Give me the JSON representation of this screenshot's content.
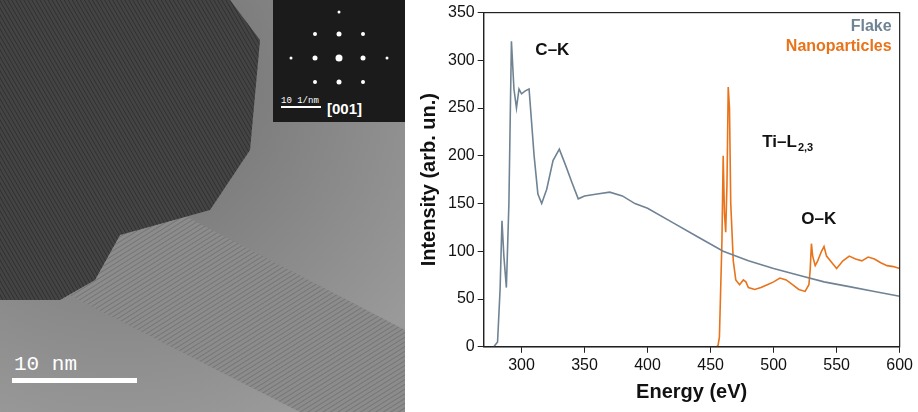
{
  "chart_data": {
    "type": "line",
    "x_label": "Energy (eV)",
    "y_label": "Intensity (arb. un.)",
    "xlim": [
      270,
      600
    ],
    "xticks": [
      300,
      350,
      400,
      450,
      500,
      550,
      600
    ],
    "ylim": [
      0,
      350
    ],
    "yticks": [
      0,
      50,
      100,
      150,
      200,
      250,
      300,
      350
    ],
    "grid": false,
    "legend": "top-right",
    "series": [
      {
        "name": "Flake",
        "color": "#6f8394",
        "x": [
          278,
          281,
          283,
          284.5,
          286,
          288,
          290,
          292,
          294,
          296,
          298,
          300,
          303,
          306,
          308,
          310,
          313,
          316,
          320,
          325,
          330,
          335,
          340,
          345,
          350,
          360,
          370,
          380,
          390,
          400,
          420,
          440,
          460,
          480,
          500,
          520,
          540,
          560,
          580,
          600
        ],
        "values": [
          0,
          5,
          60,
          132,
          95,
          62,
          150,
          320,
          270,
          250,
          270,
          265,
          268,
          270,
          235,
          200,
          160,
          150,
          165,
          195,
          207,
          190,
          172,
          155,
          158,
          160,
          162,
          158,
          150,
          145,
          130,
          115,
          100,
          90,
          82,
          75,
          68,
          63,
          58,
          53
        ]
      },
      {
        "name": "Nanoparticles",
        "color": "#e8731a",
        "x": [
          455,
          456,
          457,
          458,
          459,
          460,
          461,
          462,
          463,
          464,
          465,
          466,
          468,
          470,
          473,
          476,
          478,
          480,
          485,
          490,
          495,
          500,
          505,
          510,
          515,
          520,
          525,
          528,
          529,
          530,
          531,
          533,
          535,
          538,
          540,
          542,
          545,
          550,
          555,
          560,
          565,
          570,
          575,
          580,
          585,
          590,
          595,
          600
        ],
        "values": [
          0,
          2,
          10,
          60,
          110,
          200,
          140,
          120,
          170,
          272,
          250,
          150,
          90,
          70,
          65,
          70,
          68,
          62,
          60,
          62,
          65,
          68,
          72,
          70,
          65,
          60,
          58,
          65,
          80,
          108,
          95,
          85,
          90,
          100,
          105,
          95,
          90,
          82,
          90,
          95,
          92,
          90,
          94,
          92,
          88,
          85,
          84,
          82
        ]
      }
    ],
    "annotations": [
      {
        "text": "C–K",
        "x": 311,
        "y": 310
      },
      {
        "text": "Ti–L",
        "subscript": "2,3",
        "x": 491,
        "y": 214
      },
      {
        "text": "O–K",
        "x": 522,
        "y": 134
      }
    ]
  },
  "image_panel": {
    "scale_bar": "10 nm",
    "inset": {
      "scale_bar": "10 1/nm",
      "zone_axis": "[001]"
    }
  }
}
